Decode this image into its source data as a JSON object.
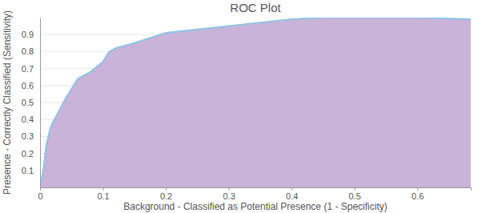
{
  "chart_data": {
    "type": "area",
    "title": "ROC Plot",
    "x_label": "Background - Classified as Potential Presence (1 - Specificity)",
    "y_label": "Presence - Correctly Classified (Sensitivity)",
    "x": [
      0,
      0.005,
      0.01,
      0.015,
      0.02,
      0.03,
      0.04,
      0.05,
      0.06,
      0.08,
      0.09,
      0.1,
      0.11,
      0.12,
      0.15,
      0.2,
      0.25,
      0.3,
      0.35,
      0.4,
      0.45,
      0.6,
      0.685
    ],
    "series": [
      {
        "color": "#c9b3d9",
        "values": [
          0,
          0.1,
          0.25,
          0.33,
          0.38,
          0.45,
          0.52,
          0.58,
          0.64,
          0.68,
          0.71,
          0.74,
          0.8,
          0.82,
          0.85,
          0.91,
          0.93,
          0.95,
          0.97,
          0.99,
          1.0,
          1.0,
          0.99
        ]
      }
    ],
    "xlim": [
      0,
      0.685
    ],
    "ylim": [
      0,
      1.0
    ],
    "xticks": [
      0,
      0.1,
      0.2,
      0.3,
      0.4,
      0.5,
      0.6
    ],
    "yticks": [
      0.1,
      0.2,
      0.3,
      0.4,
      0.5,
      0.6,
      0.7,
      0.8,
      0.9
    ],
    "grid": true
  }
}
